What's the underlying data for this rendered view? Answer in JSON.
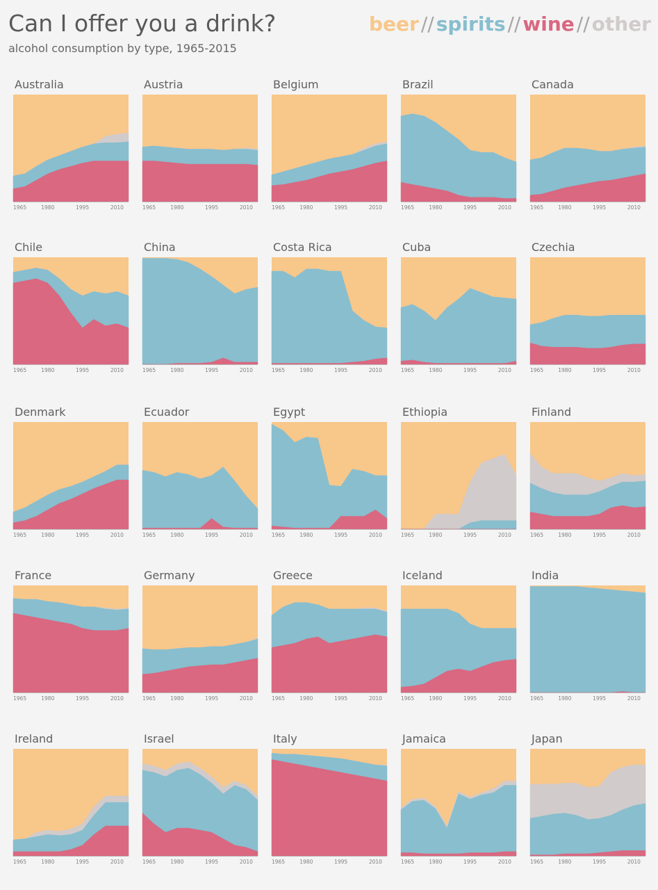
{
  "header": {
    "title": "Can I offer you a drink?",
    "subtitle": "alcohol consumption by type, 1965-2015"
  },
  "legend": {
    "items": [
      {
        "label": "beer",
        "color": "#f8c78a"
      },
      {
        "label": "spirits",
        "color": "#88bece"
      },
      {
        "label": "wine",
        "color": "#d96880"
      },
      {
        "label": "other",
        "color": "#d1cbcb"
      }
    ],
    "separator": "//"
  },
  "chart_data": {
    "type": "area",
    "stacked": "100%",
    "x_ticks": [
      "1965",
      "1980",
      "1995",
      "2010"
    ],
    "x_range": [
      1965,
      2015
    ],
    "years": [
      1965,
      1970,
      1975,
      1980,
      1985,
      1990,
      1995,
      2000,
      2005,
      2010,
      2015
    ],
    "series_order": [
      "wine",
      "spirits",
      "other",
      "beer"
    ],
    "countries": [
      {
        "name": "Australia",
        "wine": [
          12,
          14,
          20,
          26,
          30,
          33,
          36,
          38,
          38,
          38,
          38
        ],
        "spirits": [
          12,
          12,
          13,
          13,
          13,
          14,
          15,
          16,
          17,
          17,
          18
        ],
        "other": [
          0,
          0,
          0,
          0,
          0,
          0,
          0,
          0,
          6,
          8,
          8
        ]
      },
      {
        "name": "Austria",
        "wine": [
          38,
          38,
          37,
          36,
          35,
          35,
          35,
          35,
          35,
          35,
          34
        ],
        "spirits": [
          13,
          14,
          14,
          14,
          14,
          14,
          14,
          13,
          14,
          14,
          14
        ],
        "other": [
          0,
          0,
          0,
          0,
          0,
          0,
          0,
          0,
          0,
          1,
          1
        ]
      },
      {
        "name": "Belgium",
        "wine": [
          15,
          16,
          18,
          20,
          23,
          26,
          28,
          30,
          33,
          36,
          38
        ],
        "spirits": [
          10,
          12,
          13,
          14,
          14,
          14,
          14,
          14,
          15,
          16,
          16
        ],
        "other": [
          0,
          0,
          0,
          0,
          0,
          0,
          0,
          0,
          2,
          2,
          2
        ]
      },
      {
        "name": "Brazil",
        "wine": [
          18,
          16,
          14,
          12,
          10,
          6,
          4,
          4,
          4,
          3,
          3
        ],
        "spirits": [
          62,
          66,
          66,
          62,
          56,
          52,
          44,
          42,
          42,
          38,
          34
        ],
        "other": [
          0,
          0,
          0,
          0,
          0,
          0,
          0,
          0,
          0,
          0,
          0
        ]
      },
      {
        "name": "Canada",
        "wine": [
          6,
          7,
          10,
          13,
          15,
          17,
          19,
          20,
          22,
          24,
          26
        ],
        "spirits": [
          33,
          34,
          36,
          37,
          35,
          32,
          28,
          27,
          27,
          26,
          25
        ],
        "other": [
          0,
          0,
          0,
          0,
          0,
          0,
          0,
          0,
          0,
          1,
          1
        ]
      },
      {
        "name": "Chile",
        "wine": [
          76,
          78,
          80,
          76,
          64,
          48,
          34,
          42,
          36,
          38,
          34
        ],
        "spirits": [
          10,
          10,
          10,
          12,
          16,
          22,
          30,
          26,
          30,
          30,
          30
        ],
        "other": [
          0,
          0,
          0,
          0,
          0,
          0,
          0,
          0,
          0,
          0,
          0
        ]
      },
      {
        "name": "China",
        "wine": [
          0,
          0,
          0,
          1,
          1,
          1,
          2,
          6,
          2,
          2,
          2
        ],
        "spirits": [
          99,
          99,
          99,
          97,
          94,
          88,
          80,
          68,
          64,
          68,
          70
        ],
        "other": [
          0,
          0,
          0,
          0,
          0,
          0,
          0,
          0,
          0,
          0,
          0
        ]
      },
      {
        "name": "Costa Rica",
        "wine": [
          1,
          1,
          1,
          1,
          1,
          1,
          1,
          2,
          3,
          5,
          6
        ],
        "spirits": [
          86,
          86,
          80,
          88,
          88,
          86,
          86,
          48,
          38,
          30,
          28
        ],
        "other": [
          0,
          0,
          0,
          0,
          0,
          0,
          0,
          0,
          0,
          0,
          0
        ]
      },
      {
        "name": "Cuba",
        "wine": [
          3,
          4,
          2,
          1,
          1,
          1,
          1,
          1,
          1,
          1,
          3
        ],
        "spirits": [
          50,
          52,
          48,
          40,
          52,
          60,
          70,
          66,
          62,
          61,
          58
        ],
        "other": [
          0,
          0,
          0,
          0,
          0,
          0,
          0,
          0,
          0,
          0,
          0
        ]
      },
      {
        "name": "Czechia",
        "wine": [
          20,
          17,
          16,
          16,
          16,
          15,
          15,
          16,
          18,
          19,
          19
        ],
        "spirits": [
          17,
          22,
          27,
          30,
          30,
          30,
          30,
          30,
          28,
          27,
          27
        ],
        "other": [
          0,
          0,
          0,
          0,
          0,
          0,
          0,
          0,
          0,
          0,
          0
        ]
      },
      {
        "name": "Denmark",
        "wine": [
          6,
          8,
          12,
          18,
          24,
          28,
          33,
          38,
          42,
          46,
          46
        ],
        "spirits": [
          10,
          12,
          14,
          14,
          13,
          12,
          11,
          11,
          12,
          14,
          14
        ],
        "other": [
          0,
          0,
          0,
          0,
          0,
          0,
          0,
          0,
          0,
          0,
          0
        ]
      },
      {
        "name": "Ecuador",
        "wine": [
          1,
          1,
          1,
          1,
          1,
          1,
          10,
          2,
          1,
          1,
          1
        ],
        "spirits": [
          54,
          52,
          48,
          52,
          50,
          46,
          40,
          56,
          44,
          30,
          18
        ],
        "other": [
          0,
          0,
          0,
          0,
          0,
          0,
          0,
          0,
          0,
          0,
          0
        ]
      },
      {
        "name": "Egypt",
        "wine": [
          3,
          2,
          1,
          1,
          1,
          1,
          12,
          12,
          12,
          18,
          10
        ],
        "spirits": [
          95,
          90,
          80,
          85,
          84,
          40,
          28,
          44,
          42,
          32,
          40
        ],
        "other": [
          0,
          0,
          0,
          0,
          0,
          0,
          0,
          0,
          0,
          0,
          0
        ]
      },
      {
        "name": "Ethiopia",
        "wine": [
          0,
          0,
          0,
          0,
          0,
          0,
          0,
          0,
          0,
          0,
          0
        ],
        "spirits": [
          0,
          0,
          0,
          0,
          0,
          0,
          6,
          8,
          8,
          8,
          8
        ],
        "other": [
          0,
          0,
          0,
          14,
          14,
          14,
          38,
          54,
          58,
          62,
          42
        ]
      },
      {
        "name": "Finland",
        "wine": [
          16,
          14,
          12,
          12,
          12,
          12,
          14,
          20,
          22,
          20,
          21
        ],
        "spirits": [
          27,
          24,
          22,
          20,
          20,
          20,
          21,
          20,
          22,
          24,
          24
        ],
        "other": [
          28,
          20,
          18,
          20,
          20,
          16,
          10,
          8,
          8,
          6,
          6
        ]
      },
      {
        "name": "France",
        "wine": [
          74,
          72,
          70,
          68,
          66,
          64,
          60,
          58,
          58,
          58,
          60
        ],
        "spirits": [
          14,
          15,
          17,
          17,
          18,
          18,
          20,
          22,
          20,
          19,
          18
        ],
        "other": [
          0,
          0,
          0,
          0,
          0,
          0,
          0,
          0,
          1,
          1,
          1
        ]
      },
      {
        "name": "Germany",
        "wine": [
          17,
          18,
          20,
          22,
          24,
          25,
          26,
          26,
          28,
          30,
          32
        ],
        "spirits": [
          24,
          22,
          20,
          19,
          18,
          17,
          17,
          17,
          17,
          17,
          18
        ],
        "other": [
          0,
          0,
          0,
          0,
          0,
          0,
          0,
          0,
          0,
          0,
          1
        ]
      },
      {
        "name": "Greece",
        "wine": [
          42,
          44,
          46,
          50,
          52,
          46,
          48,
          50,
          52,
          54,
          52
        ],
        "spirits": [
          30,
          36,
          38,
          34,
          30,
          32,
          30,
          28,
          26,
          24,
          23
        ],
        "other": [
          0,
          0,
          0,
          0,
          0,
          0,
          0,
          0,
          1,
          1,
          1
        ]
      },
      {
        "name": "Iceland",
        "wine": [
          5,
          6,
          8,
          14,
          20,
          22,
          20,
          24,
          28,
          30,
          31
        ],
        "spirits": [
          73,
          72,
          70,
          64,
          58,
          52,
          44,
          36,
          32,
          30,
          29
        ],
        "other": [
          0,
          0,
          0,
          0,
          0,
          0,
          0,
          0,
          0,
          0,
          0
        ]
      },
      {
        "name": "India",
        "wine": [
          0,
          0,
          0,
          0,
          0,
          0,
          0,
          0,
          1,
          0,
          0
        ],
        "spirits": [
          99,
          99,
          99,
          99,
          99,
          98,
          97,
          96,
          94,
          94,
          93
        ],
        "other": [
          0,
          0,
          0,
          0,
          0,
          0,
          0,
          0,
          0,
          0,
          0
        ]
      },
      {
        "name": "Ireland",
        "wine": [
          4,
          4,
          4,
          4,
          4,
          6,
          10,
          20,
          28,
          28,
          28
        ],
        "spirits": [
          11,
          12,
          14,
          16,
          15,
          14,
          14,
          18,
          22,
          22,
          22
        ],
        "other": [
          0,
          0,
          4,
          4,
          4,
          5,
          6,
          8,
          6,
          6,
          6
        ]
      },
      {
        "name": "Israel",
        "wine": [
          40,
          30,
          22,
          26,
          26,
          24,
          22,
          16,
          10,
          8,
          4
        ],
        "spirits": [
          40,
          48,
          52,
          54,
          56,
          52,
          46,
          42,
          56,
          54,
          48
        ],
        "other": [
          6,
          6,
          6,
          6,
          6,
          6,
          6,
          6,
          4,
          4,
          4
        ]
      },
      {
        "name": "Italy",
        "wine": [
          90,
          88,
          86,
          84,
          82,
          80,
          78,
          76,
          74,
          72,
          70
        ],
        "spirits": [
          6,
          7,
          9,
          10,
          11,
          12,
          13,
          13,
          13,
          13,
          14
        ],
        "other": [
          0,
          0,
          0,
          0,
          0,
          0,
          0,
          0,
          0,
          0,
          1
        ]
      },
      {
        "name": "Jamaica",
        "wine": [
          3,
          3,
          2,
          2,
          2,
          2,
          3,
          3,
          3,
          4,
          4
        ],
        "spirits": [
          40,
          48,
          50,
          42,
          24,
          56,
          50,
          54,
          56,
          62,
          62
        ],
        "other": [
          2,
          2,
          2,
          2,
          2,
          2,
          2,
          2,
          4,
          4,
          4
        ]
      },
      {
        "name": "Japan",
        "wine": [
          1,
          1,
          1,
          2,
          2,
          2,
          3,
          4,
          5,
          5,
          5
        ],
        "spirits": [
          34,
          36,
          38,
          38,
          36,
          32,
          32,
          34,
          38,
          42,
          44
        ],
        "other": [
          32,
          30,
          28,
          28,
          30,
          30,
          30,
          40,
          40,
          38,
          36
        ]
      }
    ]
  }
}
